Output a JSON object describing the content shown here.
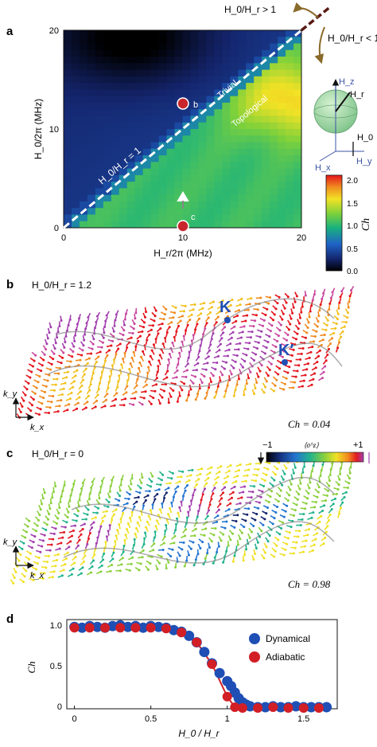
{
  "panels": {
    "a": {
      "letter": "a",
      "xlabel": "H_r/2π (MHz)",
      "ylabel": "H_0/2π (MHz)",
      "xticks": [
        "0",
        "10",
        "20"
      ],
      "yticks": [
        "0",
        "10",
        "20"
      ],
      "line_label": "H_0/H_r = 1",
      "region_trivial": "Trivial",
      "region_topological": "Topological",
      "point_b": "b",
      "point_c": "c",
      "arrow_top": "H_0/H_r > 1",
      "arrow_bottom": "H_0/H_r < 1",
      "sphere_labels": {
        "hz": "H_z",
        "hr": "H_r",
        "h0": "H_0",
        "hx": "H_x",
        "hy": "H_y"
      },
      "colorbar": {
        "label": "Ch",
        "ticks": [
          "0.0",
          "0.5",
          "1.0",
          "1.5",
          "2.0"
        ],
        "range": [
          0,
          2.1
        ]
      }
    },
    "b": {
      "letter": "b",
      "title": "H_0/H_r = 1.2",
      "k_label": "K",
      "kprime_label": "K′",
      "ky": "k_y",
      "kx": "k_x",
      "chern": "Ch = 0.04"
    },
    "c": {
      "letter": "c",
      "title": "H_0/H_r = 0",
      "ky": "k_y",
      "kx": "k_x",
      "chern": "Ch = 0.98",
      "colorbar": {
        "min": "−1",
        "max": "+1",
        "label": "⟨σ^z⟩"
      }
    },
    "d": {
      "letter": "d",
      "xlabel": "H_0 / H_r",
      "ylabel": "Ch",
      "xticks": [
        "0",
        "0.5",
        "1",
        "1.5"
      ],
      "yticks": [
        "0",
        "0.5",
        "1.0"
      ]
    }
  },
  "colors": {
    "dynamical": "#1f4fb5",
    "adiabatic": "#d21f26",
    "diag_line": "#ffffff",
    "arrow_brown": "#8a6a2a"
  },
  "chart_data": [
    {
      "panel": "a",
      "type": "heatmap",
      "x_range": [
        0,
        20
      ],
      "y_range": [
        0,
        20
      ],
      "z_range": [
        0,
        2.1
      ],
      "description_points": [
        {
          "label": "b",
          "x": 10,
          "y": 10.5
        },
        {
          "label": "c",
          "x": 10,
          "y": 0
        }
      ],
      "boundary": {
        "x": [
          0,
          20
        ],
        "y": [
          0,
          20
        ]
      }
    },
    {
      "panel": "d",
      "type": "scatter",
      "xlabel": "H_0 / H_r",
      "ylabel": "Ch",
      "xlim": [
        -0.05,
        1.72
      ],
      "ylim": [
        0,
        1.1
      ],
      "series": [
        {
          "name": "Dynamical",
          "x": [
            0,
            0.05,
            0.1,
            0.15,
            0.2,
            0.25,
            0.3,
            0.35,
            0.4,
            0.45,
            0.5,
            0.55,
            0.6,
            0.65,
            0.7,
            0.75,
            0.8,
            0.85,
            0.9,
            0.95,
            1.0,
            1.025,
            1.05,
            1.075,
            1.1,
            1.125,
            1.15,
            1.2,
            1.25,
            1.3,
            1.35,
            1.4,
            1.45,
            1.5,
            1.55,
            1.6,
            1.65
          ],
          "y": [
            1.01,
            1.0,
            1.02,
            1.01,
            1.0,
            1.02,
            1.03,
            1.01,
            1.02,
            1.0,
            1.02,
            1.01,
            1.0,
            0.97,
            0.95,
            0.9,
            0.82,
            0.7,
            0.56,
            0.44,
            0.34,
            0.28,
            0.2,
            0.13,
            0.08,
            0.05,
            0.03,
            0.02,
            0.02,
            0.03,
            0.02,
            0.02,
            0.03,
            0.02,
            0.02,
            0.02,
            0.02
          ]
        },
        {
          "name": "Adiabatic",
          "x": [
            0,
            0.1,
            0.2,
            0.3,
            0.4,
            0.5,
            0.6,
            0.7,
            0.8,
            0.9,
            1.0,
            1.05,
            1.1,
            1.2,
            1.3,
            1.4,
            1.5,
            1.6
          ],
          "y": [
            1.0,
            1.0,
            1.0,
            1.0,
            1.0,
            1.0,
            0.99,
            0.94,
            0.82,
            0.55,
            0.15,
            0.02,
            0.01,
            0.01,
            0.02,
            0.01,
            0.01,
            0.01
          ]
        }
      ],
      "legend_placement": "right"
    }
  ]
}
